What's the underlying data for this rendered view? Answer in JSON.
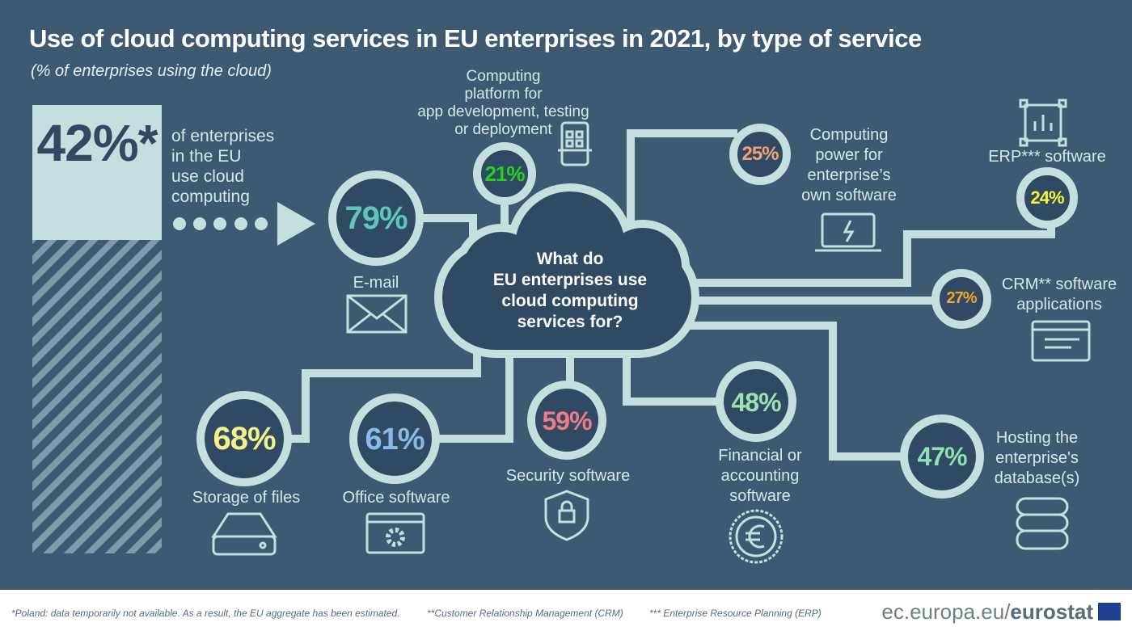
{
  "title": "Use of cloud computing services in EU enterprises in 2021, by type of service",
  "subtitle": "(% of enterprises using the cloud)",
  "headline": {
    "value": "42%*",
    "text": [
      "of enterprises",
      "in the EU",
      "use cloud",
      "computing"
    ]
  },
  "cloud_text": [
    "What do",
    "EU enterprises use",
    "cloud computing",
    "services for?"
  ],
  "services": [
    {
      "label": [
        "E-mail"
      ],
      "value": "79%",
      "color": "#5fc5b8",
      "icon": "envelope-icon"
    },
    {
      "label": [
        "Computing",
        "platform for",
        "app development, testing",
        "or deployment"
      ],
      "value": "21%",
      "color": "#23d11f",
      "icon": "tablet-app-icon"
    },
    {
      "label": [
        "Computing",
        "power for",
        "enterprise’s",
        "own software"
      ],
      "value": "25%",
      "color": "#f0a07a",
      "icon": "laptop-power-icon"
    },
    {
      "label": [
        "ERP*** software"
      ],
      "value": "24%",
      "color": "#f5f53a",
      "icon": "chart-board-icon"
    },
    {
      "label": [
        "CRM** software",
        "applications"
      ],
      "value": "27%",
      "color": "#f3a531",
      "icon": "browser-window-icon"
    },
    {
      "label": [
        "Hosting the",
        "enterprise's",
        "database(s)"
      ],
      "value": "47%",
      "color": "#8fe0b4",
      "icon": "database-icon"
    },
    {
      "label": [
        "Financial or",
        "accounting",
        "software"
      ],
      "value": "48%",
      "color": "#9fe0b0",
      "icon": "euro-coin-icon"
    },
    {
      "label": [
        "Security software"
      ],
      "value": "59%",
      "color": "#f07a86",
      "icon": "shield-lock-icon"
    },
    {
      "label": [
        "Office software"
      ],
      "value": "61%",
      "color": "#8ab8e8",
      "icon": "window-gear-icon"
    },
    {
      "label": [
        "Storage of files"
      ],
      "value": "68%",
      "color": "#f5f08a",
      "icon": "hard-drive-icon"
    }
  ],
  "footnotes": [
    "*Poland: data temporarily not available. As a result, the EU aggregate has been estimated.",
    "**Customer Relationship Management (CRM)",
    "*** Enterprise Resource Planning (ERP)"
  ],
  "brand": {
    "prefix": "ec.europa.eu/",
    "name": "eurostat"
  },
  "colors": {
    "background": "#3d5a72",
    "circle_fill": "#2f4a62",
    "line": "#c5dede"
  }
}
